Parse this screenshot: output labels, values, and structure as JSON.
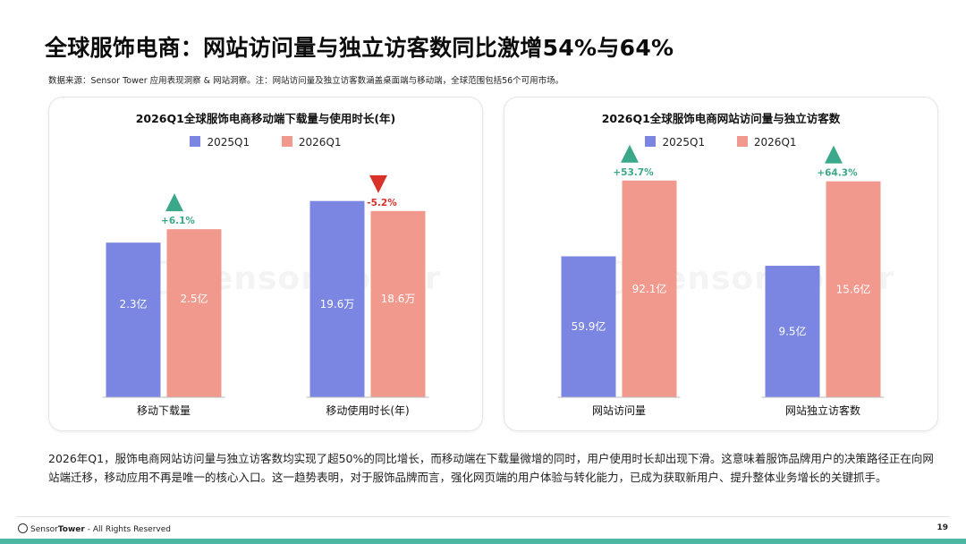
{
  "page": {
    "title": "全球服饰电商：网站访问量与独立访客数同比激增54%与64%",
    "source": "数据来源：Sensor Tower 应用表现洞察 & 网站洞察。注：网站访问量及独立访客数涵盖桌面端与移动端，全球范围包括56个可用市场。",
    "watermark": "Sensor Tower",
    "summary": "2026年Q1，服饰电商网站访问量与独立访客数均实现了超50%的同比增长，而移动端在下载量微增的同时，用户使用时长却出现下滑。这意味着服饰品牌用户的决策路径正在向网站端迁移，移动应用不再是唯一的核心入口。这一趋势表明，对于服饰品牌而言，强化网页端的用户体验与转化能力，已成为获取新用户、提升整体业务增长的关键抓手。",
    "footer": {
      "brand_a": "Sensor",
      "brand_b": "Tower",
      "rights": " - All Rights Reserved"
    },
    "page_number": "19"
  },
  "colors": {
    "s2025": "#7b86e2",
    "s2026": "#f2998e",
    "up": "#3aa88a",
    "down": "#d8322b"
  },
  "chart_data": [
    {
      "type": "bar",
      "title": "2026Q1全球服饰电商移动端下载量与使用时长(年)",
      "categories": [
        "移动下载量",
        "移动使用时长(年)"
      ],
      "series": [
        {
          "name": "2025Q1",
          "values": [
            2.3,
            19.6
          ],
          "labels": [
            "2.3亿",
            "19.6万"
          ]
        },
        {
          "name": "2026Q1",
          "values": [
            2.5,
            18.6
          ],
          "labels": [
            "2.5亿",
            "18.6万"
          ]
        }
      ],
      "changes": [
        {
          "text": "+6.1%",
          "direction": "up"
        },
        {
          "text": "-5.2%",
          "direction": "down"
        }
      ],
      "ylim_per_category": [
        [
          0,
          3.5
        ],
        [
          0,
          23.5
        ]
      ],
      "grid": false,
      "legend_position": "top-center"
    },
    {
      "type": "bar",
      "title": "2026Q1全球服饰电商网站访问量与独立访客数",
      "categories": [
        "网站访问量",
        "网站独立访客数"
      ],
      "series": [
        {
          "name": "2025Q1",
          "values": [
            59.9,
            9.5
          ],
          "labels": [
            "59.9亿",
            "9.5亿"
          ]
        },
        {
          "name": "2026Q1",
          "values": [
            92.1,
            15.6
          ],
          "labels": [
            "92.1亿",
            "15.6亿"
          ]
        }
      ],
      "changes": [
        {
          "text": "+53.7%",
          "direction": "up"
        },
        {
          "text": "+64.3%",
          "direction": "up"
        }
      ],
      "ylim_per_category": [
        [
          0,
          100
        ],
        [
          0,
          17
        ]
      ],
      "grid": false,
      "legend_position": "top-center"
    }
  ]
}
